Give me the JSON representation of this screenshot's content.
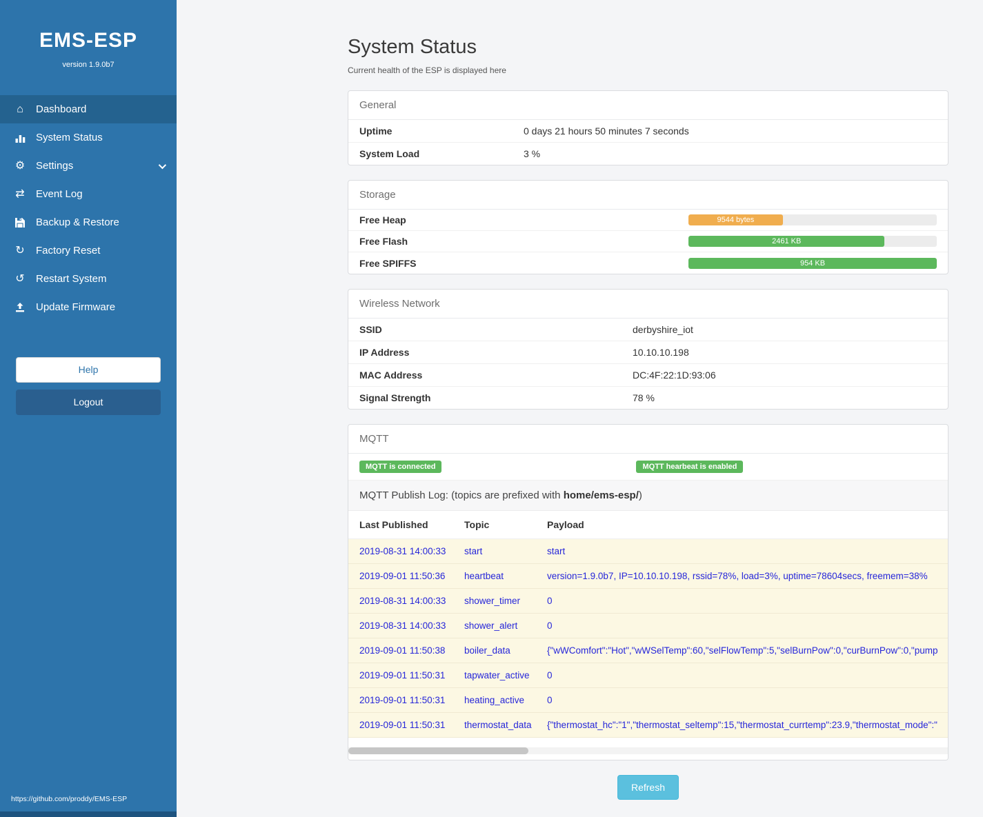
{
  "sidebar": {
    "title": "EMS-ESP",
    "version": "version 1.9.0b7",
    "items": [
      {
        "label": "Dashboard",
        "icon": "home-icon",
        "active": true
      },
      {
        "label": "System Status",
        "icon": "chart-icon",
        "active": false
      },
      {
        "label": "Settings",
        "icon": "gear-icon",
        "active": false
      },
      {
        "label": "Event Log",
        "icon": "arrows-icon",
        "active": false
      },
      {
        "label": "Backup & Restore",
        "icon": "floppy-icon",
        "active": false
      },
      {
        "label": "Factory Reset",
        "icon": "reset-icon",
        "active": false
      },
      {
        "label": "Restart System",
        "icon": "restart-icon",
        "active": false
      },
      {
        "label": "Update Firmware",
        "icon": "upload-icon",
        "active": false
      }
    ],
    "help_label": "Help",
    "logout_label": "Logout",
    "footer_link": "https://github.com/proddy/EMS-ESP"
  },
  "icons": {
    "home": "⌂",
    "gear": "⚙",
    "arrows": "⇄",
    "reset": "↻",
    "restart": "↺"
  },
  "page": {
    "title": "System Status",
    "subtitle": "Current health of the ESP is displayed here",
    "refresh_label": "Refresh"
  },
  "general": {
    "header": "General",
    "rows": [
      {
        "label": "Uptime",
        "value": "0 days 21 hours 50 minutes 7 seconds"
      },
      {
        "label": "System Load",
        "value": "3 %"
      }
    ]
  },
  "storage": {
    "header": "Storage",
    "bars": [
      {
        "label": "Free Heap",
        "value": "9544 bytes",
        "percent": 38,
        "color": "#f0ad4e"
      },
      {
        "label": "Free Flash",
        "value": "2461 KB",
        "percent": 79,
        "color": "#5cb85c"
      },
      {
        "label": "Free SPIFFS",
        "value": "954 KB",
        "percent": 100,
        "color": "#5cb85c"
      }
    ]
  },
  "wireless": {
    "header": "Wireless Network",
    "rows": [
      {
        "label": "SSID",
        "value": "derbyshire_iot"
      },
      {
        "label": "IP Address",
        "value": "10.10.10.198"
      },
      {
        "label": "MAC Address",
        "value": "DC:4F:22:1D:93:06"
      },
      {
        "label": "Signal Strength",
        "value": "78 %"
      }
    ]
  },
  "mqtt": {
    "header": "MQTT",
    "badges": [
      "MQTT is connected",
      "MQTT hearbeat is enabled"
    ],
    "log_label_prefix": "MQTT Publish Log: (topics are prefixed with ",
    "log_label_bold": "home/ems-esp/",
    "log_label_suffix": ")",
    "table": {
      "headers": [
        "Last Published",
        "Topic",
        "Payload"
      ],
      "rows": [
        {
          "time": "2019-08-31 14:00:33",
          "topic": "start",
          "payload": "start"
        },
        {
          "time": "2019-09-01 11:50:36",
          "topic": "heartbeat",
          "payload": "version=1.9.0b7, IP=10.10.10.198, rssid=78%, load=3%, uptime=78604secs, freemem=38%"
        },
        {
          "time": "2019-08-31 14:00:33",
          "topic": "shower_timer",
          "payload": "0"
        },
        {
          "time": "2019-08-31 14:00:33",
          "topic": "shower_alert",
          "payload": "0"
        },
        {
          "time": "2019-09-01 11:50:38",
          "topic": "boiler_data",
          "payload": "{\"wWComfort\":\"Hot\",\"wWSelTemp\":60,\"selFlowTemp\":5,\"selBurnPow\":0,\"curBurnPow\":0,\"pump"
        },
        {
          "time": "2019-09-01 11:50:31",
          "topic": "tapwater_active",
          "payload": "0"
        },
        {
          "time": "2019-09-01 11:50:31",
          "topic": "heating_active",
          "payload": "0"
        },
        {
          "time": "2019-09-01 11:50:31",
          "topic": "thermostat_data",
          "payload": "{\"thermostat_hc\":\"1\",\"thermostat_seltemp\":15,\"thermostat_currtemp\":23.9,\"thermostat_mode\":\""
        }
      ]
    }
  }
}
